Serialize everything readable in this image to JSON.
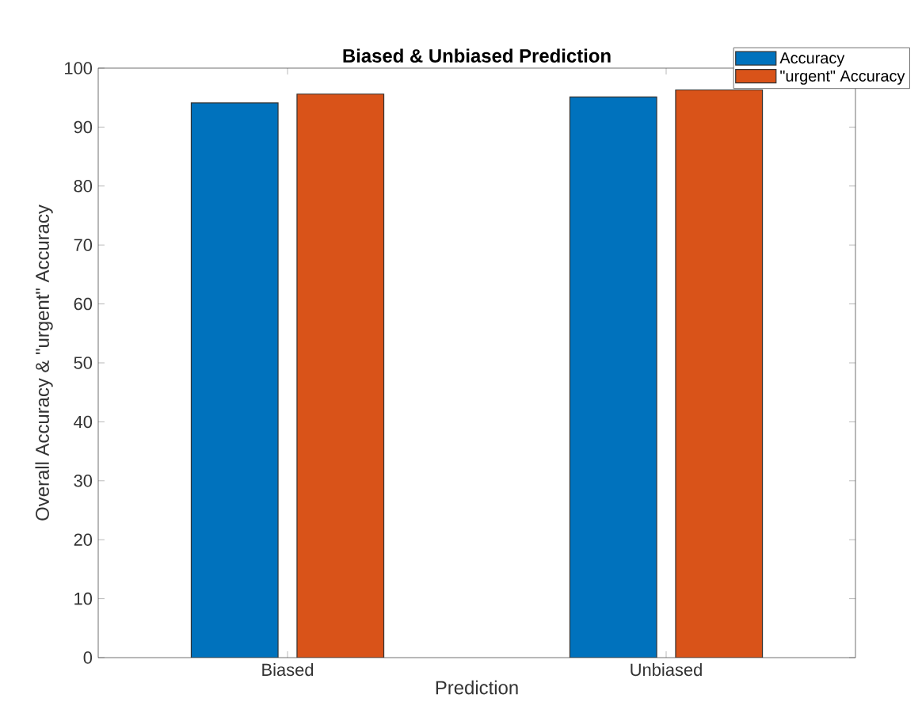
{
  "chart_data": {
    "type": "bar",
    "title": "Biased & Unbiased Prediction",
    "xlabel": "Prediction",
    "ylabel": "Overall Accuracy & \"urgent\" Accuracy",
    "categories": [
      "Biased",
      "Unbiased"
    ],
    "series": [
      {
        "name": "Accuracy",
        "color": "#0072bd",
        "values": [
          94.1,
          95.1
        ]
      },
      {
        "name": "\"urgent\" Accuracy",
        "color": "#d95319",
        "values": [
          95.6,
          96.3
        ]
      }
    ],
    "ylim": [
      0,
      100
    ],
    "yticks": [
      0,
      10,
      20,
      30,
      40,
      50,
      60,
      70,
      80,
      90,
      100
    ],
    "legend": "top right"
  }
}
